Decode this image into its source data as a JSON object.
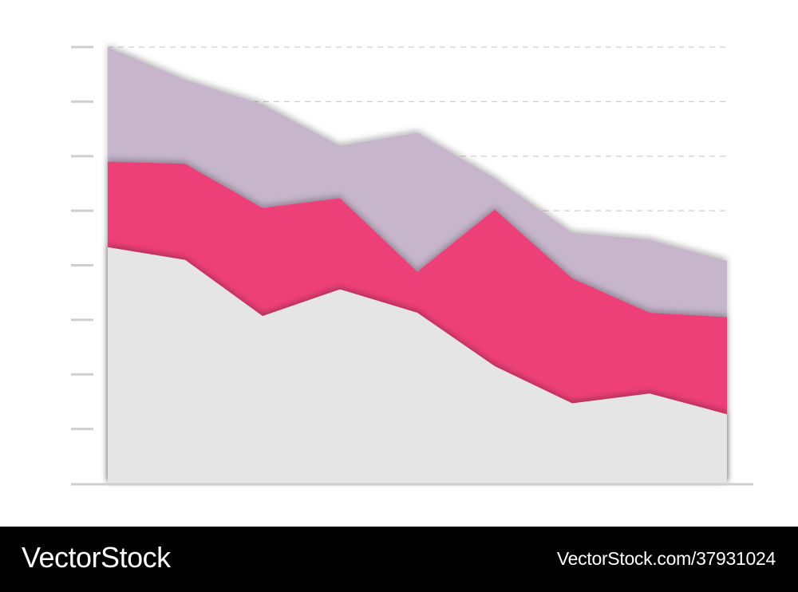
{
  "colors": {
    "grey": "#e6e5e6",
    "pink": "#ee4078",
    "mauve": "#c6b5cb",
    "axis": "#cfcfcf",
    "gridline": "#cfcfcf"
  },
  "chart_data": {
    "type": "area",
    "stacked": true,
    "x": [
      1,
      2,
      3,
      4,
      5,
      6,
      7,
      8,
      9
    ],
    "ylim": [
      0,
      8
    ],
    "yticks": [
      0,
      1,
      2,
      3,
      4,
      5,
      6,
      7,
      8
    ],
    "grid": "dashed horizontal lines",
    "series": [
      {
        "values": [
          4.33,
          4.1,
          3.07,
          3.56,
          3.13,
          2.15,
          1.47,
          1.65,
          1.27
        ],
        "color": "grey"
      },
      {
        "values": [
          1.57,
          1.76,
          1.98,
          1.67,
          0.75,
          2.87,
          2.29,
          1.48,
          1.78
        ],
        "color": "pink"
      },
      {
        "values": [
          2.1,
          1.54,
          1.9,
          0.96,
          2.55,
          0.58,
          0.84,
          1.34,
          1.03
        ],
        "color": "mauve"
      }
    ]
  },
  "watermark": {
    "brand": "VectorStock",
    "id_text": "VectorStock.com/37931024"
  }
}
